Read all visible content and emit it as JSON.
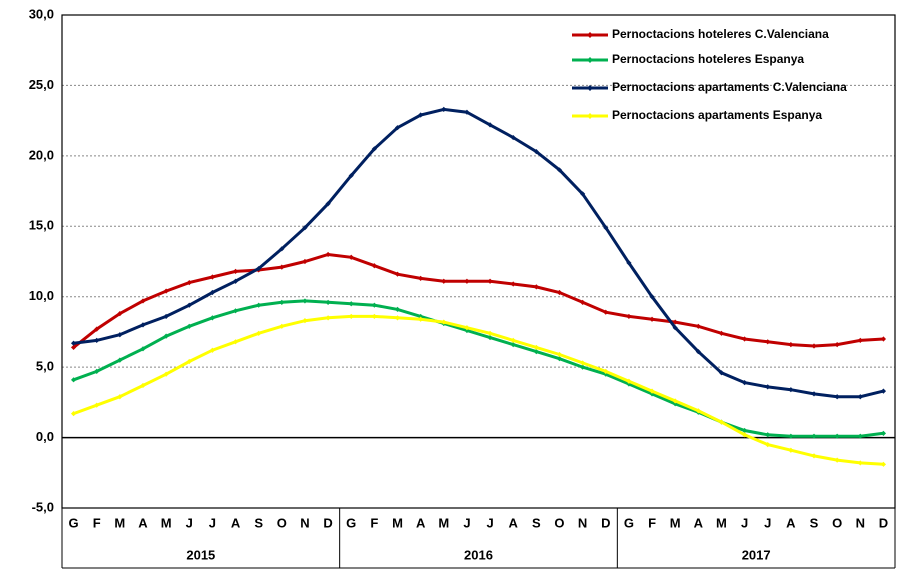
{
  "chart_data": {
    "type": "line",
    "categories": [
      "G",
      "F",
      "M",
      "A",
      "M",
      "J",
      "J",
      "A",
      "S",
      "O",
      "N",
      "D",
      "G",
      "F",
      "M",
      "A",
      "M",
      "J",
      "J",
      "A",
      "S",
      "O",
      "N",
      "D",
      "G",
      "F",
      "M",
      "A",
      "M",
      "J",
      "J",
      "A",
      "S",
      "O",
      "N",
      "D"
    ],
    "year_labels": [
      "2015",
      "2016",
      "2017"
    ],
    "ylim": [
      -5,
      30
    ],
    "yticks": [
      {
        "value": -5,
        "label": "-5,0"
      },
      {
        "value": 0,
        "label": "0,0"
      },
      {
        "value": 5,
        "label": "5,0"
      },
      {
        "value": 10,
        "label": "10,0"
      },
      {
        "value": 15,
        "label": "15,0"
      },
      {
        "value": 20,
        "label": "20,0"
      },
      {
        "value": 25,
        "label": "25,0"
      },
      {
        "value": 30,
        "label": "30,0"
      }
    ],
    "grid": true,
    "legend": "top-right",
    "series": [
      {
        "name": "Pernoctacions hoteleres C.Valenciana",
        "color": "#c00000",
        "values": [
          6.4,
          7.7,
          8.8,
          9.7,
          10.4,
          11.0,
          11.4,
          11.8,
          11.9,
          12.1,
          12.5,
          13.0,
          12.8,
          12.2,
          11.6,
          11.3,
          11.1,
          11.1,
          11.1,
          10.9,
          10.7,
          10.3,
          9.6,
          8.9,
          8.6,
          8.4,
          8.2,
          7.9,
          7.4,
          7.0,
          6.8,
          6.6,
          6.5,
          6.6,
          6.9,
          7.0
        ]
      },
      {
        "name": "Pernoctacions hoteleres Espanya",
        "color": "#00b050",
        "values": [
          4.1,
          4.7,
          5.5,
          6.3,
          7.2,
          7.9,
          8.5,
          9.0,
          9.4,
          9.6,
          9.7,
          9.6,
          9.5,
          9.4,
          9.1,
          8.6,
          8.1,
          7.6,
          7.1,
          6.6,
          6.1,
          5.6,
          5.0,
          4.5,
          3.8,
          3.1,
          2.4,
          1.8,
          1.1,
          0.5,
          0.2,
          0.1,
          0.1,
          0.1,
          0.1,
          0.3
        ]
      },
      {
        "name": "Pernoctacions apartaments C.Valenciana",
        "color": "#002060",
        "values": [
          6.7,
          6.9,
          7.3,
          8.0,
          8.6,
          9.4,
          10.3,
          11.1,
          12.0,
          13.4,
          14.9,
          16.6,
          18.6,
          20.5,
          22.0,
          22.9,
          23.3,
          23.1,
          22.2,
          21.3,
          20.3,
          19.0,
          17.3,
          14.9,
          12.4,
          10.0,
          7.8,
          6.1,
          4.6,
          3.9,
          3.6,
          3.4,
          3.1,
          2.9,
          2.9,
          3.3
        ]
      },
      {
        "name": "Pernoctacions apartaments Espanya",
        "color": "#ffff00",
        "values": [
          1.7,
          2.3,
          2.9,
          3.7,
          4.5,
          5.4,
          6.2,
          6.8,
          7.4,
          7.9,
          8.3,
          8.5,
          8.6,
          8.6,
          8.5,
          8.4,
          8.2,
          7.8,
          7.4,
          6.9,
          6.4,
          5.9,
          5.3,
          4.7,
          4.0,
          3.3,
          2.6,
          1.9,
          1.1,
          0.2,
          -0.5,
          -0.9,
          -1.3,
          -1.6,
          -1.8,
          -1.9
        ]
      }
    ]
  }
}
